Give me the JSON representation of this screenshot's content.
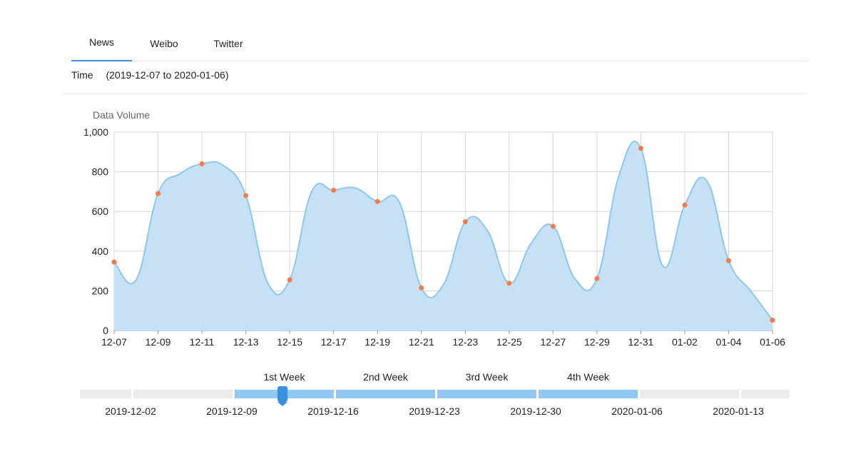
{
  "tabs": [
    {
      "label": "News",
      "active": true
    },
    {
      "label": "Weibo",
      "active": false
    },
    {
      "label": "Twitter",
      "active": false
    }
  ],
  "time_filter": {
    "label": "Time",
    "range": "(2019-12-07 to  2020-01-06)"
  },
  "colors": {
    "accent": "#3b8fe0",
    "area": "#c6e1f5",
    "line": "#8ec7ea",
    "point": "#f47b4b",
    "week_fill": "#92c9f4",
    "track": "#ececec"
  },
  "chart_data": {
    "type": "area",
    "ylabel": "Data Volume",
    "ylim": [
      0,
      1000
    ],
    "yticks": [
      "0",
      "200",
      "400",
      "600",
      "800",
      "1,000"
    ],
    "xtick_labels": [
      "12-07",
      "12-09",
      "12-11",
      "12-13",
      "12-15",
      "12-17",
      "12-19",
      "12-21",
      "12-23",
      "12-25",
      "12-27",
      "12-29",
      "12-31",
      "01-02",
      "01-04",
      "01-06"
    ],
    "series": [
      {
        "points": [
          {
            "x": "12-07",
            "y": 345,
            "marker": true
          },
          {
            "x": "12-08",
            "y": 255,
            "marker": false
          },
          {
            "x": "12-09",
            "y": 690,
            "marker": true
          },
          {
            "x": "12-10",
            "y": 790,
            "marker": false
          },
          {
            "x": "12-11",
            "y": 840,
            "marker": true
          },
          {
            "x": "12-12",
            "y": 830,
            "marker": false
          },
          {
            "x": "12-13",
            "y": 680,
            "marker": true
          },
          {
            "x": "12-14",
            "y": 240,
            "marker": false
          },
          {
            "x": "12-15",
            "y": 255,
            "marker": true
          },
          {
            "x": "12-16",
            "y": 700,
            "marker": false
          },
          {
            "x": "12-17",
            "y": 707,
            "marker": true
          },
          {
            "x": "12-18",
            "y": 718,
            "marker": false
          },
          {
            "x": "12-19",
            "y": 650,
            "marker": true
          },
          {
            "x": "12-20",
            "y": 645,
            "marker": false
          },
          {
            "x": "12-21",
            "y": 215,
            "marker": true
          },
          {
            "x": "12-22",
            "y": 230,
            "marker": false
          },
          {
            "x": "12-23",
            "y": 548,
            "marker": true
          },
          {
            "x": "12-24",
            "y": 505,
            "marker": false
          },
          {
            "x": "12-25",
            "y": 238,
            "marker": true
          },
          {
            "x": "12-26",
            "y": 440,
            "marker": false
          },
          {
            "x": "12-27",
            "y": 525,
            "marker": true
          },
          {
            "x": "12-28",
            "y": 260,
            "marker": false
          },
          {
            "x": "12-29",
            "y": 262,
            "marker": true
          },
          {
            "x": "12-30",
            "y": 780,
            "marker": false
          },
          {
            "x": "12-31",
            "y": 918,
            "marker": true
          },
          {
            "x": "01-01",
            "y": 325,
            "marker": false
          },
          {
            "x": "01-02",
            "y": 632,
            "marker": true
          },
          {
            "x": "01-03",
            "y": 755,
            "marker": false
          },
          {
            "x": "01-04",
            "y": 352,
            "marker": true
          },
          {
            "x": "01-05",
            "y": 200,
            "marker": false
          },
          {
            "x": "01-06",
            "y": 52,
            "marker": true
          }
        ]
      }
    ]
  },
  "timeline": {
    "dates": [
      "2019-12-02",
      "2019-12-09",
      "2019-12-16",
      "2019-12-23",
      "2019-12-30",
      "2020-01-06",
      "2020-01-13"
    ],
    "weeks": [
      "1st Week",
      "2nd Week",
      "3rd Week",
      "4th Week"
    ]
  }
}
